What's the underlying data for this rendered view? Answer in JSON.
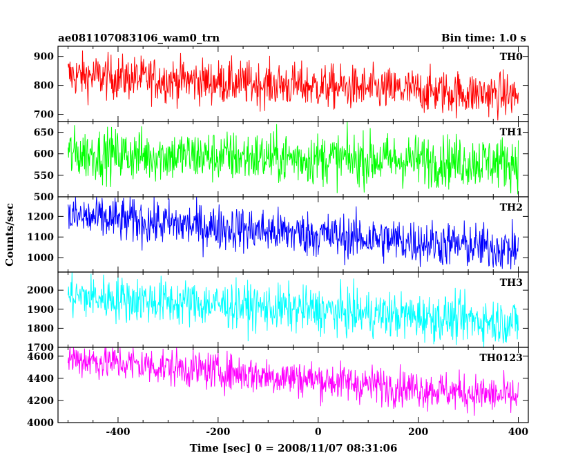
{
  "chart_data": {
    "type": "line",
    "title": "ae081107083106_wam0_trn",
    "subtitle": "Bin time: 1.0 s",
    "xlabel": "Time [sec] 0 = 2008/11/07 08:31:06",
    "ylabel": "Counts/sec",
    "xlim": [
      -520,
      420
    ],
    "x_ticks": [
      -400,
      -200,
      0,
      200,
      400
    ],
    "x_range_data": [
      -500,
      400
    ],
    "bin_time_s": 1.0,
    "panels": [
      {
        "name": "TH0",
        "color": "#ff0000",
        "ylim": [
          675,
          935
        ],
        "y_ticks": [
          700,
          800,
          900
        ],
        "mean_start": 835,
        "mean_end": 765,
        "noise": 38,
        "spike_min": 675,
        "spike_max": 935
      },
      {
        "name": "TH1",
        "color": "#00ff00",
        "ylim": [
          500,
          675
        ],
        "y_ticks": [
          500,
          550,
          600,
          650
        ],
        "mean_start": 600,
        "mean_end": 580,
        "noise": 30,
        "spike_min": 500,
        "spike_max": 675
      },
      {
        "name": "TH2",
        "color": "#0000ff",
        "ylim": [
          930,
          1295
        ],
        "y_ticks": [
          1000,
          1100,
          1200
        ],
        "mean_start": 1200,
        "mean_end": 1040,
        "noise": 55,
        "spike_min": 930,
        "spike_max": 1295
      },
      {
        "name": "TH3",
        "color": "#00ffff",
        "ylim": [
          1700,
          2095
        ],
        "y_ticks": [
          1700,
          1800,
          1900,
          2000
        ],
        "mean_start": 1970,
        "mean_end": 1830,
        "noise": 60,
        "spike_min": 1700,
        "spike_max": 2095
      },
      {
        "name": "TH0123",
        "color": "#ff00ff",
        "ylim": [
          4000,
          4680
        ],
        "y_ticks": [
          4000,
          4200,
          4400,
          4600
        ],
        "mean_start": 4580,
        "mean_end": 4230,
        "noise": 85,
        "spike_min": 4000,
        "spike_max": 4680
      }
    ]
  }
}
